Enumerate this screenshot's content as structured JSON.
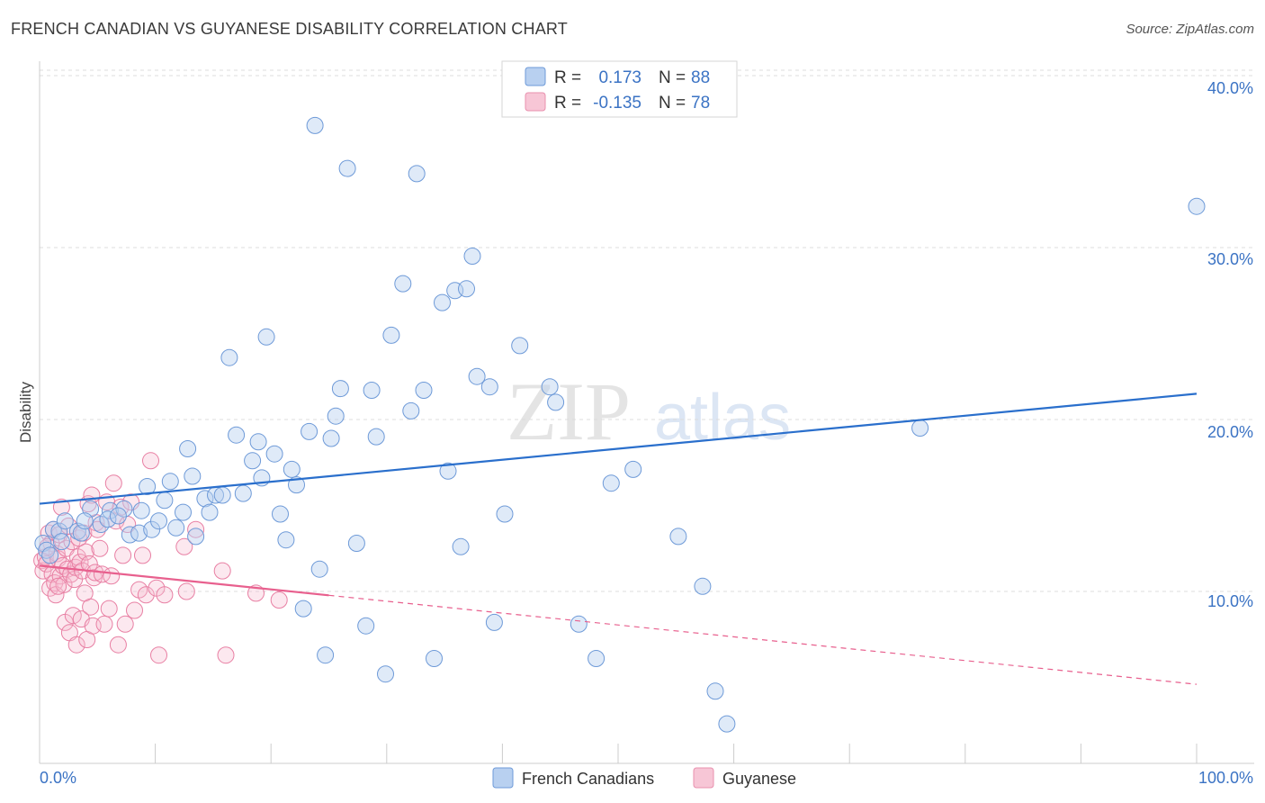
{
  "header": {
    "title": "FRENCH CANADIAN VS GUYANESE DISABILITY CORRELATION CHART",
    "source": "Source: ZipAtlas.com"
  },
  "watermark": {
    "zip": "ZIP",
    "atlas": "atlas"
  },
  "colors": {
    "blue": "#3b73c4",
    "blue_fill": "#b8d0f0",
    "blue_line": "#2a6fcc",
    "pink_fill": "#f7bcd0",
    "pink_stroke": "#e87fa3",
    "pink_line": "#e8608e",
    "grid": "#dcdcdc"
  },
  "legend": {
    "r_label": "R =",
    "n_label": "N =",
    "series": [
      {
        "name": "French Canadians",
        "r": "0.173",
        "n": "88",
        "color": "blue"
      },
      {
        "name": "Guyanese",
        "r": "-0.135",
        "n": "78",
        "color": "pink"
      }
    ]
  },
  "chart_data": {
    "type": "scatter",
    "title": "FRENCH CANADIAN VS GUYANESE DISABILITY CORRELATION CHART",
    "xlabel": "",
    "ylabel": "Disability",
    "xlim": [
      0,
      100
    ],
    "ylim": [
      0,
      42
    ],
    "x_tick_labels": [
      "0.0%",
      "100.0%"
    ],
    "y_ticks": [
      10,
      20,
      30,
      40
    ],
    "y_tick_labels": [
      "10.0%",
      "20.0%",
      "30.0%",
      "40.0%"
    ],
    "legend_position": "top-center",
    "series": [
      {
        "name": "French Canadians",
        "r": 0.173,
        "n": 88,
        "trend": {
          "x": [
            0,
            100
          ],
          "y": [
            15.1,
            21.5
          ],
          "dashed_from": null
        },
        "points": [
          [
            0.3,
            12.8
          ],
          [
            0.6,
            12.4
          ],
          [
            1.2,
            13.6
          ],
          [
            1.7,
            13.5
          ],
          [
            2.2,
            14.1
          ],
          [
            3.3,
            13.5
          ],
          [
            3.6,
            13.4
          ],
          [
            4.4,
            14.8
          ],
          [
            5.3,
            13.9
          ],
          [
            6.1,
            14.7
          ],
          [
            7.3,
            14.8
          ],
          [
            7.8,
            13.3
          ],
          [
            8.6,
            13.4
          ],
          [
            8.8,
            14.7
          ],
          [
            9.3,
            16.1
          ],
          [
            9.7,
            13.6
          ],
          [
            10.3,
            14.1
          ],
          [
            10.8,
            15.3
          ],
          [
            11.3,
            16.4
          ],
          [
            11.8,
            13.7
          ],
          [
            12.4,
            14.6
          ],
          [
            12.8,
            18.3
          ],
          [
            13.2,
            16.7
          ],
          [
            13.5,
            13.2
          ],
          [
            14.3,
            15.4
          ],
          [
            14.7,
            14.6
          ],
          [
            15.2,
            15.6
          ],
          [
            15.8,
            15.6
          ],
          [
            16.4,
            23.6
          ],
          [
            17.0,
            19.1
          ],
          [
            17.6,
            15.7
          ],
          [
            18.4,
            17.6
          ],
          [
            18.9,
            18.7
          ],
          [
            19.2,
            16.6
          ],
          [
            19.6,
            24.8
          ],
          [
            20.3,
            18.0
          ],
          [
            20.8,
            14.5
          ],
          [
            21.3,
            13.0
          ],
          [
            21.8,
            17.1
          ],
          [
            22.2,
            16.2
          ],
          [
            22.8,
            9.0
          ],
          [
            23.3,
            19.3
          ],
          [
            23.8,
            37.1
          ],
          [
            24.2,
            11.3
          ],
          [
            24.7,
            6.3
          ],
          [
            25.2,
            18.9
          ],
          [
            25.6,
            20.2
          ],
          [
            26.0,
            21.8
          ],
          [
            26.6,
            34.6
          ],
          [
            27.4,
            12.8
          ],
          [
            28.2,
            8.0
          ],
          [
            28.7,
            21.7
          ],
          [
            29.1,
            19.0
          ],
          [
            29.9,
            5.2
          ],
          [
            30.4,
            24.9
          ],
          [
            31.4,
            27.9
          ],
          [
            32.1,
            20.5
          ],
          [
            32.6,
            34.3
          ],
          [
            33.2,
            21.7
          ],
          [
            34.1,
            6.1
          ],
          [
            34.8,
            26.8
          ],
          [
            35.3,
            17.0
          ],
          [
            35.9,
            27.5
          ],
          [
            36.4,
            12.6
          ],
          [
            36.9,
            27.6
          ],
          [
            37.4,
            29.5
          ],
          [
            37.8,
            22.5
          ],
          [
            38.9,
            21.9
          ],
          [
            39.3,
            8.2
          ],
          [
            40.2,
            14.5
          ],
          [
            41.5,
            24.3
          ],
          [
            44.1,
            21.9
          ],
          [
            44.6,
            21.0
          ],
          [
            46.6,
            8.1
          ],
          [
            48.1,
            6.1
          ],
          [
            49.4,
            16.3
          ],
          [
            51.3,
            17.1
          ],
          [
            55.2,
            13.2
          ],
          [
            57.3,
            10.3
          ],
          [
            58.4,
            4.2
          ],
          [
            59.4,
            2.3
          ],
          [
            76.1,
            19.5
          ],
          [
            100.0,
            32.4
          ],
          [
            0.9,
            12.1
          ],
          [
            1.9,
            12.9
          ],
          [
            3.9,
            14.1
          ],
          [
            5.9,
            14.2
          ],
          [
            6.8,
            14.4
          ]
        ]
      },
      {
        "name": "Guyanese",
        "r": -0.135,
        "n": 78,
        "trend": {
          "x": [
            0,
            100
          ],
          "y": [
            11.5,
            4.6
          ],
          "dashed_from": 25
        },
        "points": [
          [
            0.2,
            11.8
          ],
          [
            0.3,
            11.2
          ],
          [
            0.5,
            12.0
          ],
          [
            0.6,
            11.6
          ],
          [
            0.8,
            13.4
          ],
          [
            0.9,
            10.2
          ],
          [
            1.0,
            12.8
          ],
          [
            1.1,
            11.0
          ],
          [
            1.2,
            13.6
          ],
          [
            1.3,
            10.5
          ],
          [
            1.4,
            9.8
          ],
          [
            1.5,
            12.2
          ],
          [
            1.6,
            11.9
          ],
          [
            1.7,
            13.3
          ],
          [
            1.8,
            10.9
          ],
          [
            1.9,
            14.9
          ],
          [
            2.0,
            11.5
          ],
          [
            2.1,
            10.4
          ],
          [
            2.2,
            8.2
          ],
          [
            2.3,
            12.5
          ],
          [
            2.4,
            11.3
          ],
          [
            2.5,
            13.8
          ],
          [
            2.6,
            7.6
          ],
          [
            2.7,
            11.0
          ],
          [
            2.8,
            12.9
          ],
          [
            2.9,
            8.6
          ],
          [
            3.0,
            10.7
          ],
          [
            3.1,
            11.4
          ],
          [
            3.2,
            6.9
          ],
          [
            3.3,
            12.0
          ],
          [
            3.4,
            13.1
          ],
          [
            3.5,
            11.7
          ],
          [
            3.6,
            8.4
          ],
          [
            3.7,
            11.2
          ],
          [
            3.8,
            13.4
          ],
          [
            3.9,
            9.9
          ],
          [
            4.0,
            12.3
          ],
          [
            4.1,
            7.2
          ],
          [
            4.2,
            15.1
          ],
          [
            4.3,
            11.6
          ],
          [
            4.4,
            9.1
          ],
          [
            4.5,
            15.6
          ],
          [
            4.6,
            8.0
          ],
          [
            4.7,
            10.8
          ],
          [
            4.8,
            11.1
          ],
          [
            4.9,
            14.0
          ],
          [
            5.0,
            13.6
          ],
          [
            5.2,
            12.5
          ],
          [
            5.4,
            11.0
          ],
          [
            5.6,
            8.1
          ],
          [
            5.8,
            15.2
          ],
          [
            6.0,
            9.0
          ],
          [
            6.2,
            10.9
          ],
          [
            6.4,
            16.3
          ],
          [
            6.6,
            14.1
          ],
          [
            6.8,
            6.9
          ],
          [
            7.0,
            14.9
          ],
          [
            7.2,
            12.1
          ],
          [
            7.4,
            8.1
          ],
          [
            7.6,
            13.9
          ],
          [
            7.9,
            15.2
          ],
          [
            8.2,
            8.9
          ],
          [
            8.6,
            10.1
          ],
          [
            8.9,
            12.1
          ],
          [
            9.2,
            9.8
          ],
          [
            9.6,
            17.6
          ],
          [
            10.1,
            10.2
          ],
          [
            10.3,
            6.3
          ],
          [
            10.8,
            9.8
          ],
          [
            12.5,
            12.6
          ],
          [
            12.7,
            10.0
          ],
          [
            13.5,
            13.6
          ],
          [
            15.8,
            11.2
          ],
          [
            16.1,
            6.3
          ],
          [
            18.7,
            9.9
          ],
          [
            20.7,
            9.5
          ],
          [
            0.7,
            12.6
          ],
          [
            1.6,
            10.3
          ]
        ]
      }
    ]
  }
}
